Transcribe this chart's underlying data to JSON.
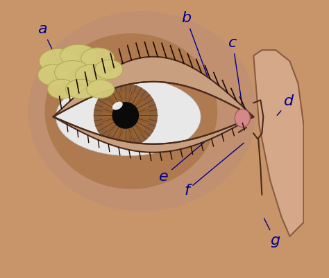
{
  "bg_color": "#c8956b",
  "orbit_shadow_color": "#b07a50",
  "orbit_shadow2_color": "#c09070",
  "sclera_color": "#e8e8e8",
  "iris_outer": "#8B5E3C",
  "iris_mid": "#a06830",
  "iris_inner": "#5a3010",
  "pupil_color": "#0a0a0a",
  "highlight_color": "#ffffff",
  "lacrimal_gland_color": "#d4cc7a",
  "lacrimal_gland_edge": "#b0a850",
  "eyelid_color": "#c8a080",
  "eyelid_edge": "#4a2a1a",
  "lash_color": "#1a0a00",
  "caruncle_color": "#d4888a",
  "nasal_color": "#d4a888",
  "nasal_edge": "#8a5a40",
  "line_color": "#00008B",
  "labels": [
    "a",
    "b",
    "c",
    "d",
    "e",
    "f",
    "g"
  ],
  "label_fontsize": 16
}
